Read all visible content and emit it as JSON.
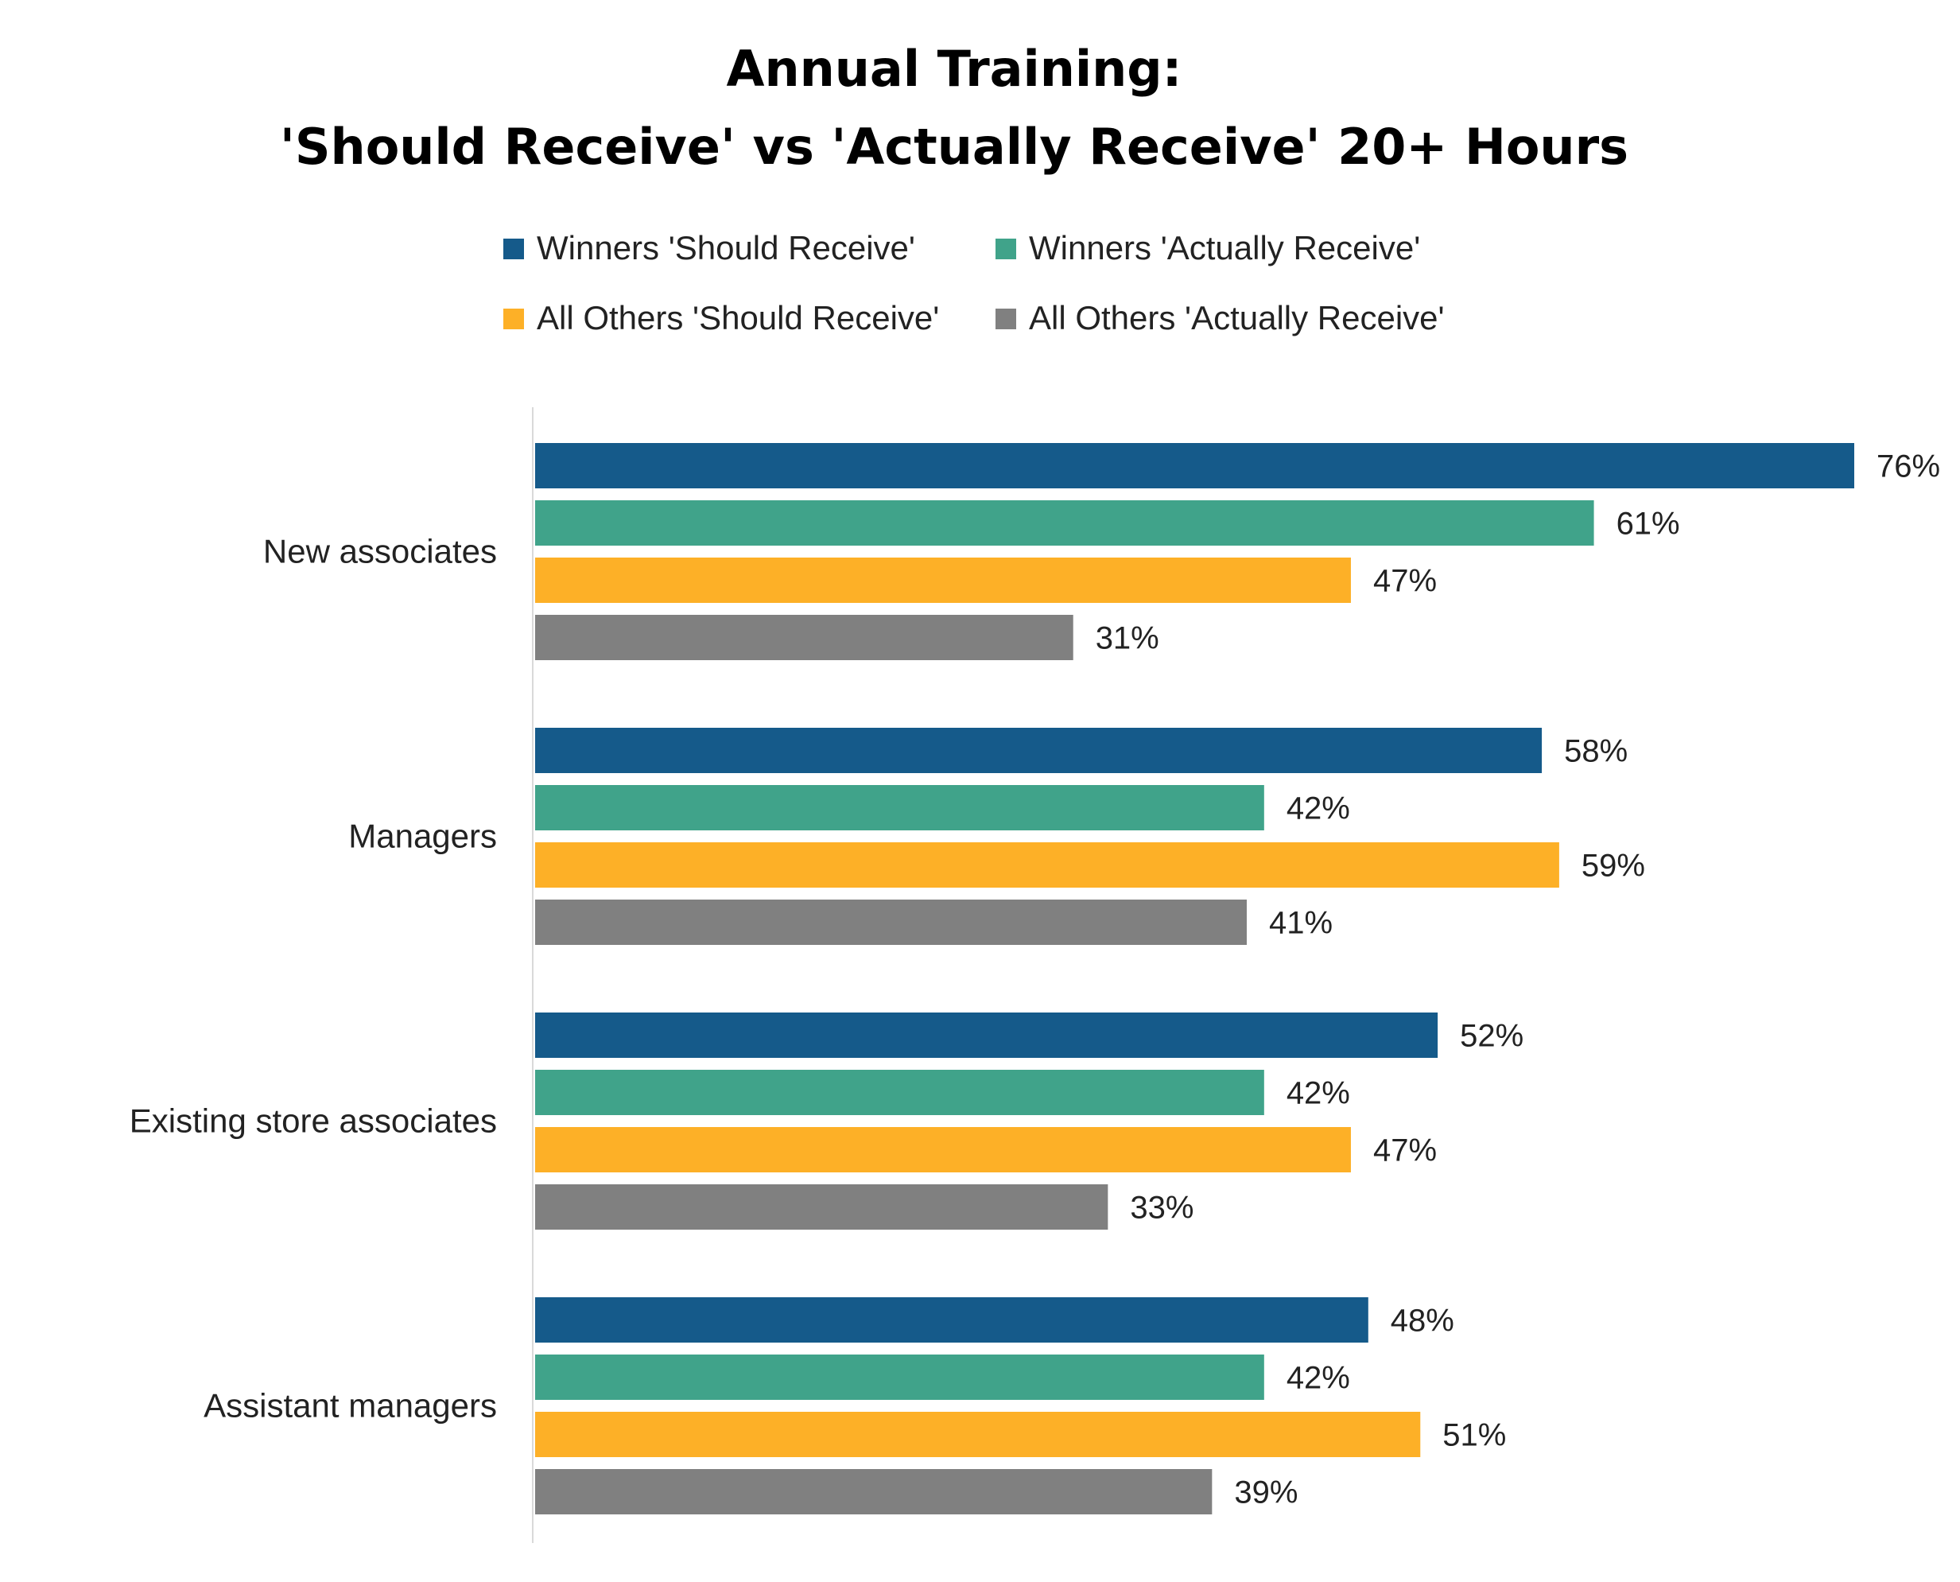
{
  "chart_data": {
    "type": "bar",
    "orientation": "horizontal",
    "title_lines": [
      "Annual Training:",
      "'Should Receive' vs 'Actually Receive' 20+ Hours"
    ],
    "categories": [
      "New associates",
      "Managers",
      "Existing store associates",
      "Assistant managers"
    ],
    "series": [
      {
        "name": "Winners 'Should Receive'",
        "color": "#155A8A",
        "values": [
          76,
          58,
          52,
          48
        ],
        "labels": [
          "76%",
          "58%",
          "52%",
          "48%"
        ]
      },
      {
        "name": "Winners 'Actually Receive'",
        "color": "#40A38A",
        "values": [
          61,
          42,
          42,
          42
        ],
        "labels": [
          "61%",
          "42%",
          "42%",
          "42%"
        ]
      },
      {
        "name": "All Others 'Should Receive'",
        "color": "#FDB027",
        "values": [
          47,
          59,
          47,
          51
        ],
        "labels": [
          "47%",
          "59%",
          "47%",
          "51%"
        ]
      },
      {
        "name": "All Others 'Actually Receive'",
        "color": "#808080",
        "values": [
          31,
          41,
          33,
          39
        ],
        "labels": [
          "31%",
          "41%",
          "33%",
          "39%"
        ]
      }
    ],
    "legend_position": "top",
    "grid": false,
    "xlim": [
      0,
      100
    ]
  }
}
